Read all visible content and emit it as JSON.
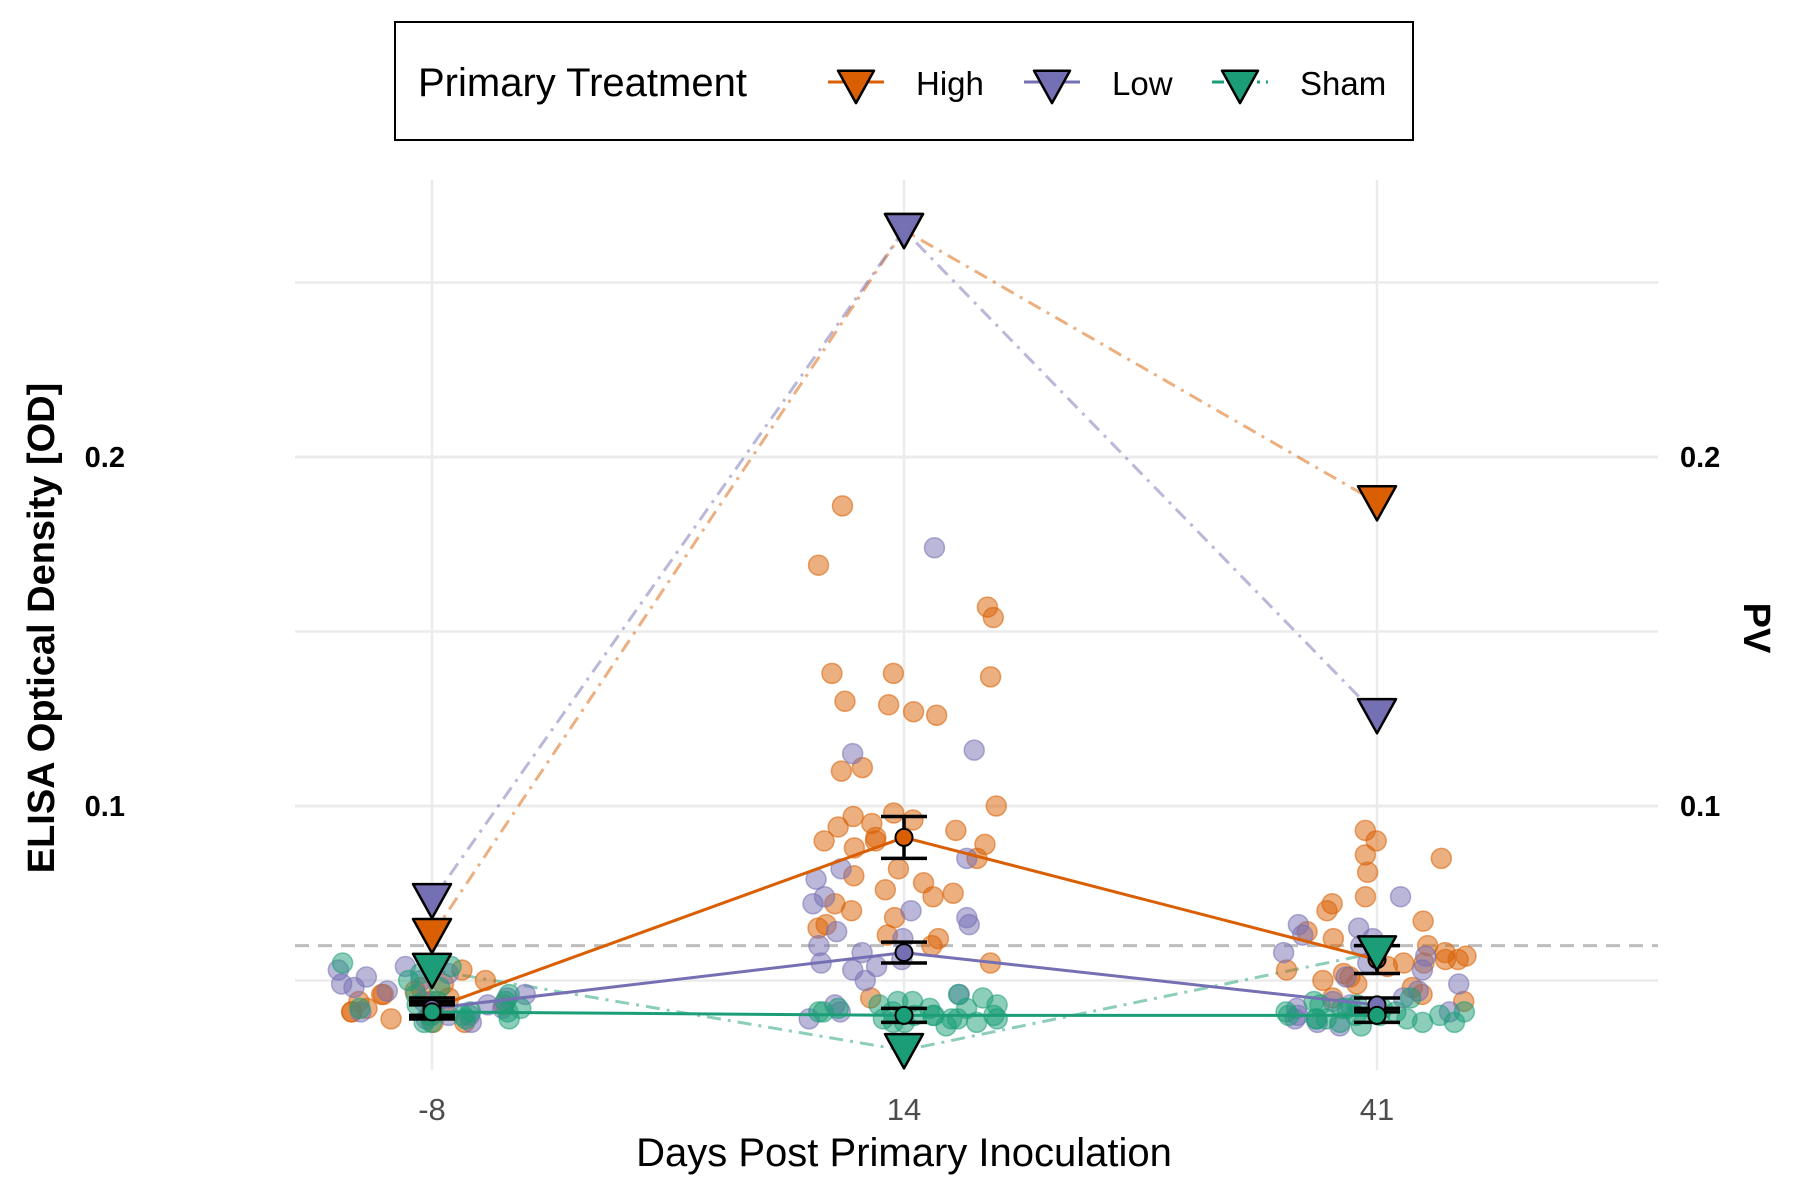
{
  "chart_data": {
    "type": "scatter",
    "xlabel": "Days Post Primary Inoculation",
    "ylabel": "ELISA Optical Density [OD]",
    "y2label": "PV",
    "categories": [
      "-8",
      "14",
      "41"
    ],
    "ylim": [
      0.025,
      0.275
    ],
    "yticks": [
      0.1,
      0.2
    ],
    "ytick_labels": [
      "0.1",
      "0.2"
    ],
    "y2ticks": [
      0.1,
      0.2
    ],
    "y2tick_labels": [
      "0.1",
      "0.2"
    ],
    "grid": true,
    "reference_line": 0.06,
    "legend": {
      "title": "Primary Treatment",
      "position": "top",
      "entries": [
        "High",
        "Low",
        "Sham"
      ]
    },
    "colors": {
      "High": "#d95f02",
      "Low": "#7570b3",
      "Sham": "#1b9e77"
    },
    "series": [
      {
        "name": "High",
        "mean": [
          0.042,
          0.091,
          0.056
        ],
        "error": [
          0.003,
          0.006,
          0.004
        ],
        "pv": [
          0.063,
          0.265,
          0.187
        ],
        "points": [
          [
            0.04,
            0.042,
            0.044,
            0.046,
            0.048,
            0.038,
            0.041,
            0.043,
            0.045,
            0.047,
            0.039,
            0.05,
            0.053,
            0.041,
            0.044,
            0.046,
            0.038,
            0.042,
            0.049,
            0.04
          ],
          [
            0.186,
            0.169,
            0.157,
            0.154,
            0.138,
            0.138,
            0.137,
            0.13,
            0.129,
            0.127,
            0.126,
            0.111,
            0.11,
            0.1,
            0.098,
            0.097,
            0.096,
            0.095,
            0.094,
            0.093,
            0.091,
            0.09,
            0.09,
            0.089,
            0.088,
            0.085,
            0.082,
            0.08,
            0.078,
            0.076,
            0.075,
            0.074,
            0.072,
            0.07,
            0.068,
            0.066,
            0.065,
            0.063,
            0.062,
            0.06,
            0.055,
            0.045
          ],
          [
            0.093,
            0.09,
            0.086,
            0.085,
            0.081,
            0.074,
            0.072,
            0.07,
            0.067,
            0.064,
            0.062,
            0.06,
            0.058,
            0.057,
            0.056,
            0.056,
            0.055,
            0.055,
            0.054,
            0.053,
            0.052,
            0.051,
            0.05,
            0.049,
            0.048,
            0.046,
            0.045,
            0.044
          ]
        ]
      },
      {
        "name": "Low",
        "mean": [
          0.042,
          0.058,
          0.043
        ],
        "error": [
          0.002,
          0.003,
          0.002
        ],
        "pv": [
          0.073,
          0.265,
          0.126
        ],
        "points": [
          [
            0.053,
            0.054,
            0.052,
            0.05,
            0.048,
            0.046,
            0.044,
            0.042,
            0.04,
            0.039,
            0.041,
            0.043,
            0.045,
            0.047,
            0.049,
            0.051,
            0.038,
            0.04
          ],
          [
            0.174,
            0.116,
            0.115,
            0.085,
            0.082,
            0.079,
            0.074,
            0.072,
            0.07,
            0.068,
            0.066,
            0.064,
            0.062,
            0.06,
            0.058,
            0.056,
            0.055,
            0.054,
            0.053,
            0.05,
            0.046,
            0.043,
            0.041,
            0.039
          ],
          [
            0.074,
            0.066,
            0.065,
            0.063,
            0.062,
            0.06,
            0.058,
            0.057,
            0.055,
            0.053,
            0.051,
            0.049,
            0.047,
            0.045,
            0.044,
            0.043,
            0.042,
            0.041,
            0.04,
            0.039,
            0.038,
            0.037
          ]
        ]
      },
      {
        "name": "Sham",
        "mean": [
          0.041,
          0.04,
          0.04
        ],
        "error": [
          0.002,
          0.002,
          0.002
        ],
        "pv": [
          0.053,
          0.03,
          0.058
        ],
        "points": [
          [
            0.055,
            0.054,
            0.052,
            0.05,
            0.048,
            0.046,
            0.044,
            0.043,
            0.042,
            0.041,
            0.04,
            0.04,
            0.039,
            0.039,
            0.038,
            0.042,
            0.044,
            0.046,
            0.038,
            0.041
          ],
          [
            0.046,
            0.045,
            0.044,
            0.043,
            0.042,
            0.042,
            0.041,
            0.041,
            0.04,
            0.04,
            0.04,
            0.039,
            0.039,
            0.039,
            0.038,
            0.038,
            0.038,
            0.037,
            0.041,
            0.043,
            0.044,
            0.039,
            0.04,
            0.042
          ],
          [
            0.045,
            0.044,
            0.043,
            0.042,
            0.042,
            0.041,
            0.041,
            0.04,
            0.04,
            0.04,
            0.039,
            0.039,
            0.039,
            0.038,
            0.038,
            0.038,
            0.041,
            0.043,
            0.04,
            0.039,
            0.042,
            0.037
          ]
        ]
      }
    ]
  }
}
